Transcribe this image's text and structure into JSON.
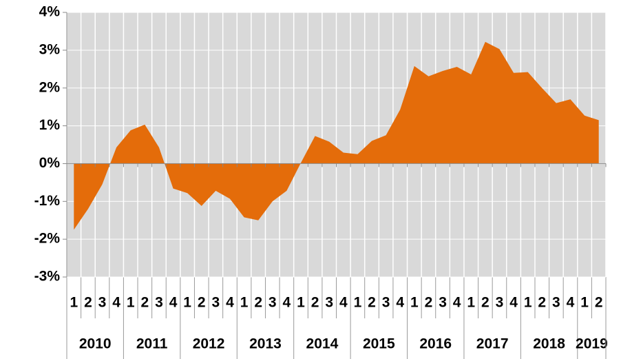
{
  "chart_data": {
    "type": "area",
    "categories": [
      "1",
      "2",
      "3",
      "4",
      "1",
      "2",
      "3",
      "4",
      "1",
      "2",
      "3",
      "4",
      "1",
      "2",
      "3",
      "4",
      "1",
      "2",
      "3",
      "4",
      "1",
      "2",
      "3",
      "4",
      "1",
      "2",
      "3",
      "4",
      "1",
      "2",
      "3",
      "4",
      "1",
      "2",
      "3",
      "4",
      "1",
      "2"
    ],
    "year_groups": [
      {
        "label": "2010",
        "size": 4
      },
      {
        "label": "2011",
        "size": 4
      },
      {
        "label": "2012",
        "size": 4
      },
      {
        "label": "2013",
        "size": 4
      },
      {
        "label": "2014",
        "size": 4
      },
      {
        "label": "2015",
        "size": 4
      },
      {
        "label": "2016",
        "size": 4
      },
      {
        "label": "2017",
        "size": 4
      },
      {
        "label": "2018",
        "size": 4
      },
      {
        "label": "2019",
        "size": 2
      }
    ],
    "series": [
      {
        "color": "#e46c0a",
        "values": [
          -1.75,
          -1.2,
          -0.55,
          0.43,
          0.88,
          1.03,
          0.43,
          -0.66,
          -0.78,
          -1.12,
          -0.72,
          -0.93,
          -1.42,
          -1.5,
          -1.0,
          -0.72,
          0.02,
          0.73,
          0.58,
          0.29,
          0.25,
          0.6,
          0.75,
          1.43,
          2.58,
          2.31,
          2.45,
          2.56,
          2.36,
          3.22,
          3.03,
          2.4,
          2.42,
          2.0,
          1.6,
          1.7,
          1.27,
          1.15
        ]
      }
    ],
    "ylim": [
      -3,
      4
    ],
    "yticks": [
      {
        "value": -3,
        "label": "-3%"
      },
      {
        "value": -2,
        "label": "-2%"
      },
      {
        "value": -1,
        "label": "-1%"
      },
      {
        "value": 0,
        "label": "0%"
      },
      {
        "value": 1,
        "label": "1%"
      },
      {
        "value": 2,
        "label": "2%"
      },
      {
        "value": 3,
        "label": "3%"
      },
      {
        "value": 4,
        "label": "4%"
      }
    ],
    "grid": true,
    "plot_background": "#d9d9d9"
  }
}
